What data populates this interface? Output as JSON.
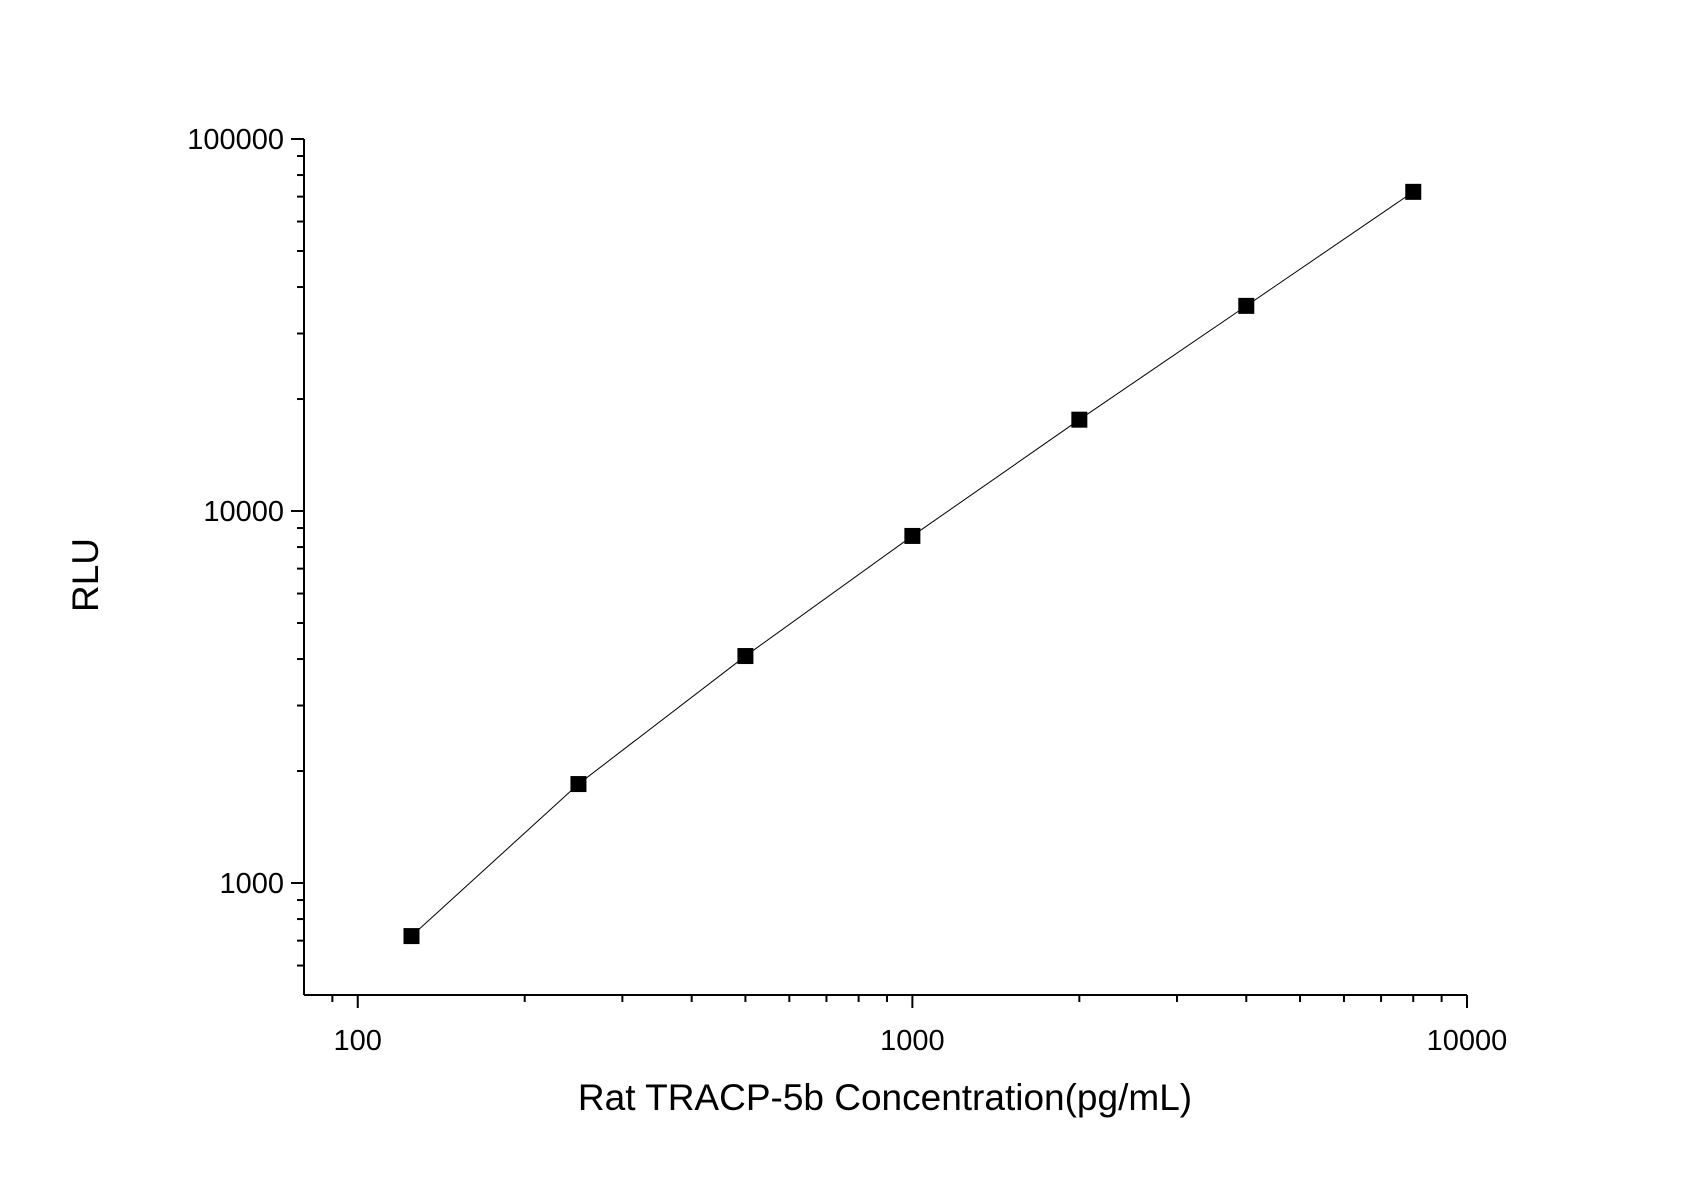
{
  "chart_data": {
    "type": "line",
    "x_label": "Rat TRACP-5b Concentration(pg/mL)",
    "y_label": "RLU",
    "x": [
      125,
      250,
      500,
      1000,
      2000,
      4000,
      8000
    ],
    "series": [
      {
        "color": "#000000",
        "values": [
          720,
          1845,
          4075,
          8570,
          17600,
          35600,
          72100
        ]
      }
    ],
    "xlim": [
      80,
      10000
    ],
    "ylim": [
      500,
      100000
    ],
    "xticks": [
      100,
      1000,
      10000
    ],
    "yticks": [
      1000,
      10000,
      100000
    ],
    "xscale": "log",
    "yscale": "log",
    "grid": false
  }
}
